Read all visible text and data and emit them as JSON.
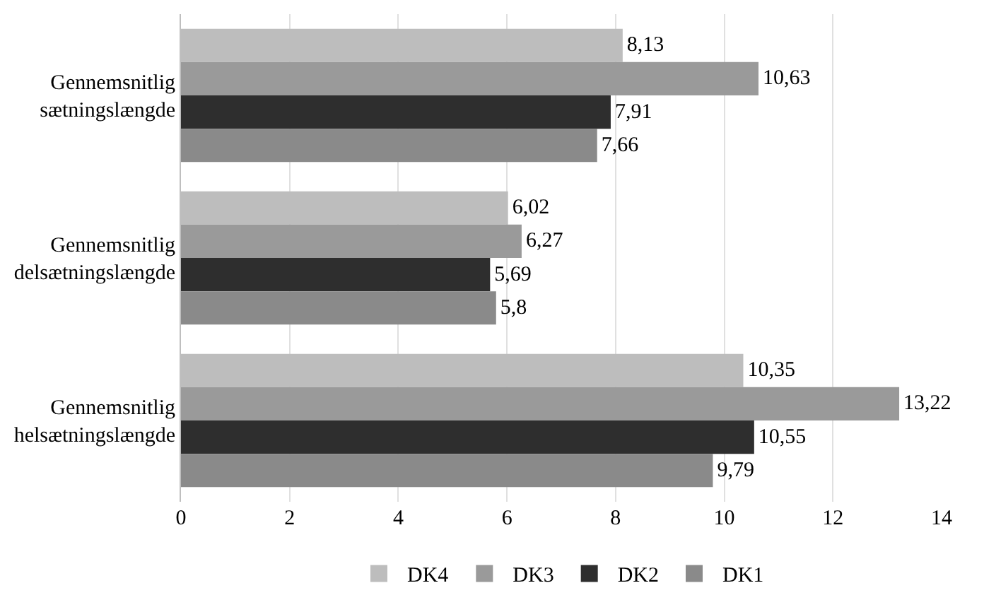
{
  "chart_data": {
    "type": "bar",
    "orientation": "horizontal",
    "categories": [
      "Gennemsnitlig\nsætningslængde",
      "Gennemsnitlig\ndelsætningslængde",
      "Gennemsnitlig\nhelsætningslængde"
    ],
    "series": [
      {
        "name": "DK4",
        "color": "#bdbdbd",
        "values": [
          8.13,
          6.02,
          10.35
        ],
        "value_labels": [
          "8,13",
          "6,02",
          "10,35"
        ]
      },
      {
        "name": "DK3",
        "color": "#9a9a9a",
        "values": [
          10.63,
          6.27,
          13.22
        ],
        "value_labels": [
          "10,63",
          "6,27",
          "13,22"
        ]
      },
      {
        "name": "DK2",
        "color": "#2e2e2e",
        "values": [
          7.91,
          5.69,
          10.55
        ],
        "value_labels": [
          "7,91",
          "5,69",
          "10,55"
        ]
      },
      {
        "name": "DK1",
        "color": "#8a8a8a",
        "values": [
          7.66,
          5.8,
          9.79
        ],
        "value_labels": [
          "7,66",
          "5,8",
          "9,79"
        ]
      }
    ],
    "xlim": [
      0,
      14
    ],
    "xticks": [
      0,
      2,
      4,
      6,
      8,
      10,
      12,
      14
    ],
    "grid": "x",
    "legend": "bottom"
  }
}
